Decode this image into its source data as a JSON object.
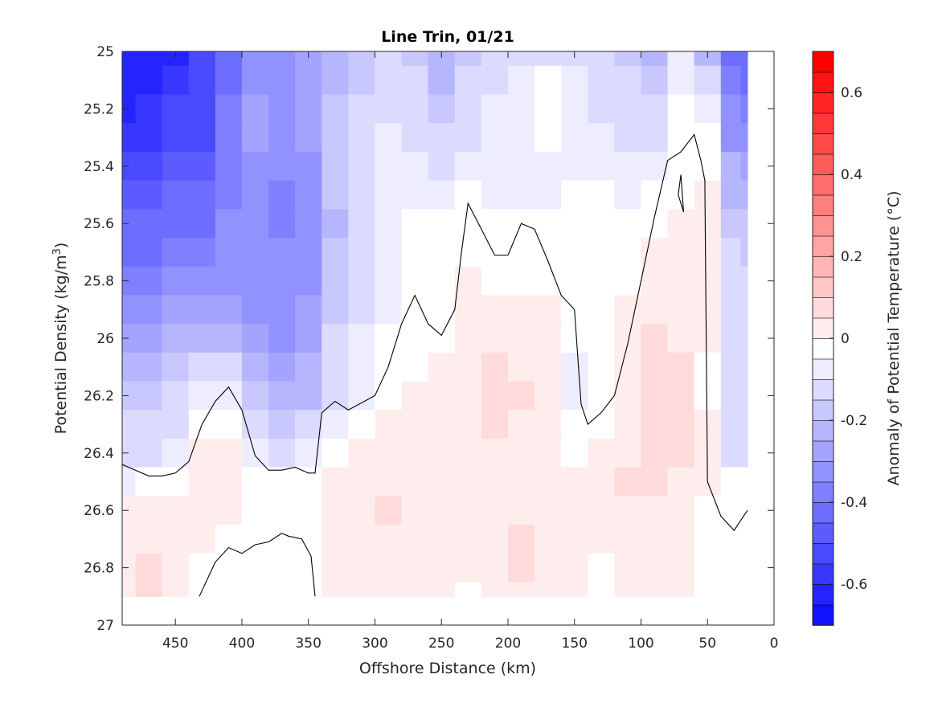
{
  "chart_data": {
    "type": "heatmap",
    "title": "Line Trin, 01/21",
    "xlabel": "Offshore Distance (km)",
    "ylabel": "Potential Density (kg/m",
    "ylabel_sup": "3",
    "ylabel_tail": ")",
    "xlim": [
      490,
      0
    ],
    "ylim": [
      25,
      27
    ],
    "x_direction": "reversed",
    "y_direction": "reversed",
    "x_ticks": [
      "450",
      "400",
      "350",
      "300",
      "250",
      "200",
      "150",
      "100",
      "50",
      "0"
    ],
    "x_tick_values": [
      450,
      400,
      350,
      300,
      250,
      200,
      150,
      100,
      50,
      0
    ],
    "y_ticks": [
      "25",
      "25.2",
      "25.4",
      "25.6",
      "25.8",
      "26",
      "26.2",
      "26.4",
      "26.6",
      "26.8",
      "27"
    ],
    "y_tick_values": [
      25,
      25.2,
      25.4,
      25.6,
      25.8,
      26,
      26.2,
      26.4,
      26.6,
      26.8,
      27
    ],
    "colorbar": {
      "label": "Anomaly of Potential Temperature (°C)",
      "range": [
        -0.7,
        0.7
      ],
      "step": 0.05,
      "ticks": [
        "0.6",
        "0.4",
        "0.2",
        "0",
        "-0.2",
        "-0.4",
        "-0.6"
      ],
      "tick_values": [
        0.6,
        0.4,
        0.2,
        0,
        -0.2,
        -0.4,
        -0.6
      ],
      "min_color": "#0000ff",
      "mid_color": "#ffffff",
      "max_color": "#ff0000"
    },
    "grid_x": [
      490,
      470,
      450,
      430,
      410,
      390,
      370,
      350,
      330,
      310,
      290,
      270,
      250,
      230,
      210,
      190,
      170,
      150,
      130,
      110,
      90,
      70,
      50,
      30,
      20
    ],
    "grid_y": [
      25.0,
      25.1,
      25.2,
      25.3,
      25.4,
      25.5,
      25.6,
      25.7,
      25.8,
      25.9,
      26.0,
      26.1,
      26.2,
      26.3,
      26.4,
      26.5,
      26.6,
      26.7,
      26.8,
      26.9
    ],
    "values": [
      [
        -0.62,
        -0.62,
        -0.58,
        -0.52,
        -0.4,
        -0.3,
        -0.3,
        -0.25,
        -0.2,
        -0.15,
        -0.12,
        -0.15,
        -0.2,
        -0.15,
        -0.1,
        -0.08,
        -0.08,
        -0.12,
        -0.12,
        -0.15,
        -0.2,
        -0.05,
        -0.2,
        -0.42,
        -0.4
      ],
      [
        -0.6,
        -0.6,
        -0.56,
        -0.5,
        -0.38,
        -0.28,
        -0.28,
        -0.24,
        -0.18,
        -0.14,
        -0.1,
        -0.12,
        -0.18,
        -0.12,
        -0.08,
        -0.06,
        -0.02,
        -0.05,
        -0.1,
        -0.12,
        -0.15,
        -0.03,
        -0.1,
        -0.36,
        -0.38
      ],
      [
        -0.58,
        -0.56,
        -0.52,
        -0.48,
        -0.36,
        -0.26,
        -0.28,
        -0.24,
        -0.16,
        -0.12,
        -0.08,
        -0.1,
        -0.14,
        -0.1,
        -0.06,
        -0.05,
        -0.02,
        -0.03,
        -0.08,
        -0.1,
        -0.12,
        -0.02,
        -0.05,
        -0.32,
        -0.34
      ],
      [
        -0.56,
        -0.54,
        -0.5,
        -0.48,
        -0.36,
        -0.26,
        -0.3,
        -0.26,
        -0.16,
        -0.1,
        -0.06,
        -0.08,
        -0.1,
        -0.08,
        -0.06,
        -0.05,
        -0.02,
        -0.03,
        -0.06,
        -0.08,
        -0.1,
        -0.01,
        0.0,
        -0.28,
        -0.3
      ],
      [
        -0.5,
        -0.5,
        -0.46,
        -0.44,
        -0.34,
        -0.28,
        -0.32,
        -0.28,
        -0.16,
        -0.1,
        -0.05,
        -0.05,
        -0.08,
        -0.04,
        -0.05,
        -0.06,
        -0.03,
        -0.03,
        -0.04,
        -0.06,
        -0.06,
        0.0,
        0.02,
        -0.22,
        -0.25
      ],
      [
        -0.46,
        -0.46,
        -0.42,
        -0.42,
        -0.34,
        -0.3,
        -0.34,
        -0.3,
        -0.16,
        -0.1,
        -0.05,
        -0.03,
        -0.04,
        -0.02,
        -0.03,
        -0.04,
        -0.03,
        -0.02,
        -0.02,
        -0.03,
        -0.02,
        0.01,
        0.03,
        -0.18,
        -0.2
      ],
      [
        -0.42,
        -0.42,
        -0.38,
        -0.38,
        -0.32,
        -0.3,
        -0.34,
        -0.32,
        -0.18,
        -0.1,
        -0.05,
        -0.02,
        -0.02,
        0.01,
        -0.01,
        -0.02,
        -0.02,
        -0.02,
        -0.02,
        -0.01,
        0.01,
        0.03,
        0.04,
        -0.14,
        -0.16
      ],
      [
        -0.38,
        -0.38,
        -0.34,
        -0.34,
        -0.3,
        -0.3,
        -0.32,
        -0.3,
        -0.16,
        -0.1,
        -0.04,
        -0.02,
        0.0,
        0.02,
        0.0,
        -0.01,
        -0.01,
        0.0,
        -0.02,
        0.0,
        0.03,
        0.05,
        0.05,
        -0.12,
        -0.14
      ],
      [
        -0.34,
        -0.34,
        -0.3,
        -0.3,
        -0.28,
        -0.3,
        -0.32,
        -0.28,
        -0.16,
        -0.1,
        -0.04,
        -0.01,
        0.01,
        0.03,
        0.02,
        0.0,
        0.01,
        0.02,
        0.0,
        0.02,
        0.05,
        0.06,
        0.05,
        -0.12,
        -0.12
      ],
      [
        -0.3,
        -0.3,
        -0.26,
        -0.26,
        -0.24,
        -0.28,
        -0.3,
        -0.26,
        -0.14,
        -0.08,
        -0.03,
        0.0,
        0.02,
        0.05,
        0.05,
        0.03,
        0.03,
        0.02,
        0.01,
        0.04,
        0.06,
        0.06,
        0.04,
        -0.12,
        -0.12
      ],
      [
        -0.24,
        -0.24,
        -0.2,
        -0.2,
        -0.2,
        -0.26,
        -0.28,
        -0.24,
        -0.12,
        -0.06,
        -0.02,
        0.01,
        0.02,
        0.06,
        0.06,
        0.05,
        0.04,
        -0.01,
        0.0,
        0.05,
        0.08,
        0.07,
        0.03,
        -0.12,
        -0.12
      ],
      [
        -0.2,
        -0.2,
        -0.16,
        -0.12,
        -0.12,
        -0.22,
        -0.26,
        -0.22,
        -0.1,
        -0.05,
        -0.01,
        0.02,
        0.03,
        0.06,
        0.08,
        0.07,
        0.05,
        -0.04,
        -0.02,
        0.06,
        0.08,
        0.08,
        0.02,
        -0.12,
        -0.12
      ],
      [
        -0.16,
        -0.16,
        -0.12,
        -0.05,
        -0.04,
        -0.16,
        -0.2,
        -0.18,
        -0.08,
        -0.03,
        0.01,
        0.03,
        0.05,
        0.06,
        0.09,
        0.08,
        0.06,
        -0.04,
        -0.02,
        0.06,
        0.09,
        0.08,
        0.02,
        -0.12,
        -0.12
      ],
      [
        -0.12,
        -0.12,
        -0.08,
        0.02,
        0.0,
        -0.1,
        -0.16,
        -0.12,
        -0.04,
        0.02,
        0.04,
        0.05,
        0.06,
        0.07,
        0.08,
        0.07,
        0.06,
        -0.02,
        0.0,
        0.06,
        0.09,
        0.08,
        0.03,
        -0.12,
        -0.12
      ],
      [
        -0.08,
        -0.08,
        -0.04,
        0.04,
        0.03,
        -0.04,
        -0.08,
        -0.06,
        0.0,
        0.04,
        0.06,
        0.06,
        0.05,
        0.07,
        0.07,
        0.06,
        0.05,
        0.01,
        0.03,
        0.07,
        0.09,
        0.08,
        0.04,
        -0.1,
        -0.1
      ],
      [
        -0.04,
        -0.02,
        0.0,
        0.05,
        0.05,
        0.0,
        -0.01,
        -0.01,
        0.04,
        0.06,
        0.07,
        0.06,
        0.05,
        0.06,
        0.06,
        0.05,
        0.05,
        0.03,
        0.05,
        0.08,
        0.08,
        0.07,
        0.03,
        -0.02,
        -0.02
      ],
      [
        0.03,
        0.04,
        0.04,
        0.05,
        0.04,
        0.02,
        0.01,
        0.02,
        0.05,
        0.06,
        0.08,
        0.06,
        0.04,
        0.05,
        0.06,
        0.07,
        0.06,
        0.04,
        0.05,
        0.07,
        0.07,
        0.06,
        0.02,
        0.0,
        0.0
      ],
      [
        0.06,
        0.06,
        0.05,
        0.03,
        0.0,
        -0.01,
        -0.01,
        0.01,
        0.04,
        0.05,
        0.06,
        0.05,
        0.05,
        0.05,
        0.07,
        0.08,
        0.07,
        0.03,
        0.04,
        0.06,
        0.07,
        0.05,
        0.01,
        0.0,
        0.0
      ],
      [
        0.07,
        0.08,
        0.06,
        0.02,
        0.0,
        -0.01,
        -0.01,
        0.0,
        0.04,
        0.05,
        0.05,
        0.05,
        0.05,
        0.04,
        0.06,
        0.08,
        0.07,
        0.04,
        0.02,
        0.06,
        0.07,
        0.05,
        0.01,
        0.02,
        0.02
      ],
      [
        0.07,
        0.09,
        0.06,
        0.02,
        -0.02,
        0.0,
        0.0,
        0.0,
        0.03,
        0.04,
        0.04,
        0.04,
        0.03,
        0.02,
        0.05,
        0.06,
        0.05,
        0.03,
        0.02,
        0.05,
        0.06,
        0.05,
        0.02,
        0.02,
        0.02
      ]
    ],
    "zero_contours": [
      {
        "x": [
          490,
          470,
          460,
          450,
          440,
          430,
          420,
          410,
          400,
          390,
          380,
          370,
          360,
          350,
          345,
          340,
          330,
          320,
          300,
          290,
          280,
          270,
          260,
          250,
          240,
          235,
          230,
          220,
          210,
          200,
          190,
          180,
          170,
          160,
          150,
          145,
          140,
          130,
          120,
          110,
          100,
          90,
          80,
          70,
          60,
          55,
          52,
          50,
          40,
          30,
          20
        ],
        "y": [
          26.44,
          26.48,
          26.48,
          26.47,
          26.43,
          26.3,
          26.22,
          26.17,
          26.25,
          26.41,
          26.46,
          26.46,
          26.45,
          26.47,
          26.47,
          26.26,
          26.22,
          26.25,
          26.2,
          26.1,
          25.95,
          25.85,
          25.95,
          25.99,
          25.9,
          25.7,
          25.53,
          25.62,
          25.71,
          25.71,
          25.6,
          25.62,
          25.73,
          25.85,
          25.9,
          26.23,
          26.3,
          26.26,
          26.2,
          26.02,
          25.8,
          25.58,
          25.38,
          25.35,
          25.29,
          25.38,
          25.45,
          26.5,
          26.62,
          26.67,
          26.6
        ]
      },
      {
        "x": [
          432,
          420,
          410,
          400,
          390,
          380,
          370,
          365,
          355,
          348,
          345
        ],
        "y": [
          26.9,
          26.78,
          26.73,
          26.75,
          26.72,
          26.71,
          26.68,
          26.69,
          26.7,
          26.76,
          26.9
        ]
      },
      {
        "x": [
          70,
          72,
          68,
          70
        ],
        "y": [
          25.43,
          25.5,
          25.56,
          25.43
        ]
      }
    ]
  }
}
